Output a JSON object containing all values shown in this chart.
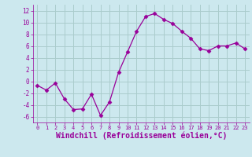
{
  "x": [
    0,
    1,
    2,
    3,
    4,
    5,
    6,
    7,
    8,
    9,
    10,
    11,
    12,
    13,
    14,
    15,
    16,
    17,
    18,
    19,
    20,
    21,
    22,
    23
  ],
  "y": [
    -0.7,
    -1.5,
    -0.3,
    -3.0,
    -4.8,
    -4.7,
    -2.2,
    -5.8,
    -3.5,
    1.5,
    5.0,
    8.5,
    11.0,
    11.5,
    10.5,
    9.8,
    8.5,
    7.3,
    5.5,
    5.2,
    6.0,
    6.0,
    6.5,
    5.5
  ],
  "line_color": "#990099",
  "marker": "D",
  "marker_size": 2.5,
  "bg_color": "#cce8ee",
  "grid_color": "#aacccc",
  "xlabel": "Windchill (Refroidissement éolien,°C)",
  "xlabel_fontsize": 7,
  "yticks": [
    -6,
    -4,
    -2,
    0,
    2,
    4,
    6,
    8,
    10,
    12
  ],
  "xticks": [
    0,
    1,
    2,
    3,
    4,
    5,
    6,
    7,
    8,
    9,
    10,
    11,
    12,
    13,
    14,
    15,
    16,
    17,
    18,
    19,
    20,
    21,
    22,
    23
  ],
  "ylim": [
    -7,
    13
  ],
  "xlim": [
    -0.5,
    23.5
  ]
}
